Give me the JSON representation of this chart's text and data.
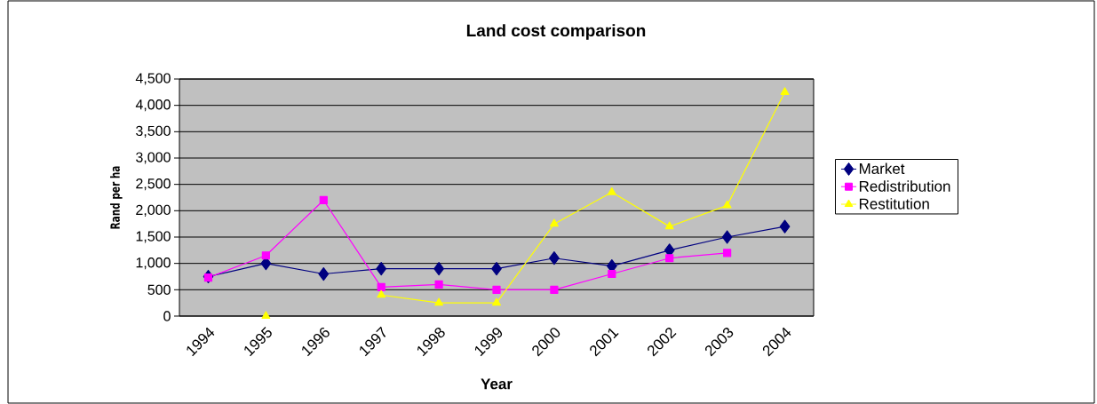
{
  "chart_data": {
    "type": "line",
    "title": "Land cost comparison",
    "xlabel": "Year",
    "ylabel": "Rand per ha",
    "categories": [
      "1994",
      "1995",
      "1996",
      "1997",
      "1998",
      "1999",
      "2000",
      "2001",
      "2002",
      "2003",
      "2004"
    ],
    "series": [
      {
        "name": "Market",
        "color": "#000080",
        "marker": "diamond",
        "values": [
          750,
          1000,
          800,
          900,
          900,
          900,
          1100,
          950,
          1250,
          1500,
          1700
        ]
      },
      {
        "name": "Redistribution",
        "color": "#ff00ff",
        "marker": "square",
        "values": [
          730,
          1150,
          2200,
          550,
          600,
          500,
          500,
          800,
          1100,
          1200,
          null
        ]
      },
      {
        "name": "Restitution",
        "color": "#ffff00",
        "marker": "triangle",
        "values": [
          null,
          0,
          null,
          400,
          250,
          250,
          1750,
          2350,
          1700,
          2100,
          4250
        ]
      }
    ],
    "ylim": [
      0,
      4500
    ],
    "yticks": [
      0,
      500,
      {
        "value": 1000,
        "label": "1,000"
      },
      {
        "value": 1500,
        "label": "1,500"
      },
      {
        "value": 2000,
        "label": "2,000"
      },
      {
        "value": 2500,
        "label": "2,500"
      },
      {
        "value": 3000,
        "label": "3,000"
      },
      {
        "value": 3500,
        "label": "3,500"
      },
      {
        "value": 4000,
        "label": "4,000"
      },
      {
        "value": 4500,
        "label": "4,500"
      }
    ],
    "grid": "y",
    "legend": "right"
  }
}
